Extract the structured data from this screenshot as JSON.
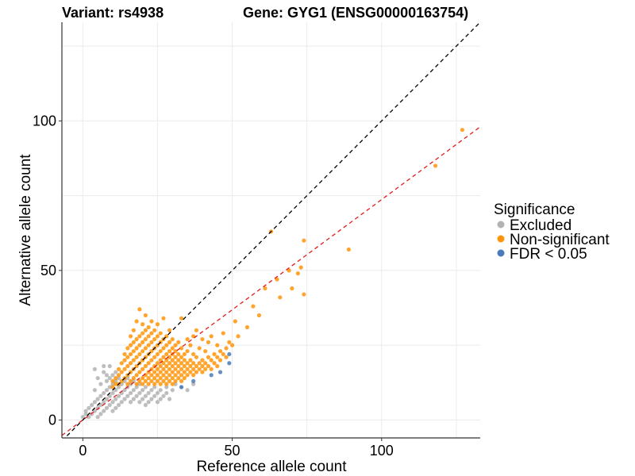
{
  "chart_data": {
    "type": "scatter",
    "title_left": "Variant: rs4938",
    "title_right": "Gene: GYG1 (ENSG00000163754)",
    "xlabel": "Reference allele count",
    "ylabel": "Alternative allele count",
    "xlim": [
      -7,
      133
    ],
    "ylim": [
      -6,
      133
    ],
    "xticks": [
      0,
      50,
      100
    ],
    "yticks": [
      0,
      50,
      100
    ],
    "grid": true,
    "reference_line": {
      "slope": 1,
      "intercept": 0,
      "color": "#000000",
      "style": "dashed"
    },
    "fit_line": {
      "slope": 0.737,
      "intercept": 0,
      "color": "#e41a1c",
      "style": "dashed"
    },
    "legend": {
      "title": "Significance",
      "position": "right",
      "entries": [
        {
          "label": "Excluded",
          "color": "#b3b3b3"
        },
        {
          "label": "Non-significant",
          "color": "#ff9408"
        },
        {
          "label": "FDR < 0.05",
          "color": "#4a7ab8"
        }
      ]
    },
    "series": [
      {
        "name": "Excluded",
        "color": "#b3b3b3",
        "points": [
          [
            0,
            1
          ],
          [
            1,
            2
          ],
          [
            1,
            3
          ],
          [
            2,
            1
          ],
          [
            2,
            4
          ],
          [
            3,
            2
          ],
          [
            3,
            5
          ],
          [
            4,
            3
          ],
          [
            4,
            6
          ],
          [
            4,
            10
          ],
          [
            4,
            17
          ],
          [
            5,
            1
          ],
          [
            5,
            4
          ],
          [
            5,
            7
          ],
          [
            5,
            14
          ],
          [
            6,
            2
          ],
          [
            6,
            5
          ],
          [
            6,
            8
          ],
          [
            6,
            12
          ],
          [
            7,
            3
          ],
          [
            7,
            6
          ],
          [
            7,
            9
          ],
          [
            7,
            16
          ],
          [
            7,
            18
          ],
          [
            8,
            4
          ],
          [
            8,
            7
          ],
          [
            8,
            10
          ],
          [
            8,
            13
          ],
          [
            8,
            15
          ],
          [
            9,
            5
          ],
          [
            9,
            8
          ],
          [
            9,
            11
          ],
          [
            9,
            14
          ],
          [
            9,
            18
          ],
          [
            10,
            3
          ],
          [
            10,
            6
          ],
          [
            10,
            9
          ],
          [
            10,
            12
          ],
          [
            10,
            15
          ],
          [
            11,
            4
          ],
          [
            11,
            7
          ],
          [
            11,
            10
          ],
          [
            11,
            13
          ],
          [
            11,
            16
          ],
          [
            12,
            5
          ],
          [
            12,
            8
          ],
          [
            12,
            11
          ],
          [
            12,
            14
          ],
          [
            13,
            6
          ],
          [
            13,
            9
          ],
          [
            13,
            12
          ],
          [
            14,
            7
          ],
          [
            14,
            10
          ],
          [
            14,
            13
          ],
          [
            15,
            8
          ],
          [
            15,
            11
          ],
          [
            15,
            14
          ],
          [
            16,
            6
          ],
          [
            16,
            9
          ],
          [
            16,
            12
          ],
          [
            17,
            7
          ],
          [
            17,
            10
          ],
          [
            17,
            13
          ],
          [
            18,
            8
          ],
          [
            18,
            11
          ],
          [
            19,
            6
          ],
          [
            19,
            9
          ],
          [
            19,
            12
          ],
          [
            20,
            7
          ],
          [
            20,
            10
          ],
          [
            21,
            5
          ],
          [
            21,
            8
          ],
          [
            21,
            11
          ],
          [
            22,
            6
          ],
          [
            22,
            9
          ],
          [
            23,
            7
          ],
          [
            23,
            10
          ],
          [
            24,
            8
          ],
          [
            24,
            11
          ],
          [
            25,
            6
          ],
          [
            25,
            9
          ],
          [
            26,
            7
          ],
          [
            26,
            10
          ],
          [
            27,
            8
          ],
          [
            28,
            9
          ],
          [
            28,
            11
          ],
          [
            29,
            7
          ],
          [
            30,
            10
          ],
          [
            31,
            12
          ],
          [
            33,
            11
          ],
          [
            35,
            10
          ],
          [
            37,
            12
          ]
        ]
      },
      {
        "name": "Non-significant",
        "color": "#ff9408",
        "points": [
          [
            10,
            11
          ],
          [
            10,
            13
          ],
          [
            11,
            12
          ],
          [
            11,
            14
          ],
          [
            12,
            12
          ],
          [
            12,
            15
          ],
          [
            12,
            17
          ],
          [
            13,
            13
          ],
          [
            13,
            16
          ],
          [
            13,
            19
          ],
          [
            14,
            14
          ],
          [
            14,
            17
          ],
          [
            14,
            20
          ],
          [
            14,
            22
          ],
          [
            15,
            12
          ],
          [
            15,
            15
          ],
          [
            15,
            18
          ],
          [
            15,
            21
          ],
          [
            15,
            24
          ],
          [
            16,
            13
          ],
          [
            16,
            16
          ],
          [
            16,
            19
          ],
          [
            16,
            22
          ],
          [
            16,
            25
          ],
          [
            16,
            28
          ],
          [
            17,
            14
          ],
          [
            17,
            17
          ],
          [
            17,
            20
          ],
          [
            17,
            23
          ],
          [
            17,
            26
          ],
          [
            17,
            30
          ],
          [
            18,
            12
          ],
          [
            18,
            15
          ],
          [
            18,
            18
          ],
          [
            18,
            21
          ],
          [
            18,
            24
          ],
          [
            18,
            27
          ],
          [
            18,
            33
          ],
          [
            19,
            13
          ],
          [
            19,
            16
          ],
          [
            19,
            19
          ],
          [
            19,
            22
          ],
          [
            19,
            25
          ],
          [
            19,
            28
          ],
          [
            19,
            37
          ],
          [
            20,
            12
          ],
          [
            20,
            14
          ],
          [
            20,
            17
          ],
          [
            20,
            20
          ],
          [
            20,
            23
          ],
          [
            20,
            26
          ],
          [
            20,
            29
          ],
          [
            20,
            32
          ],
          [
            21,
            13
          ],
          [
            21,
            15
          ],
          [
            21,
            18
          ],
          [
            21,
            21
          ],
          [
            21,
            24
          ],
          [
            21,
            27
          ],
          [
            21,
            30
          ],
          [
            21,
            35
          ],
          [
            22,
            12
          ],
          [
            22,
            14
          ],
          [
            22,
            16
          ],
          [
            22,
            19
          ],
          [
            22,
            22
          ],
          [
            22,
            25
          ],
          [
            22,
            28
          ],
          [
            22,
            31
          ],
          [
            23,
            13
          ],
          [
            23,
            15
          ],
          [
            23,
            17
          ],
          [
            23,
            20
          ],
          [
            23,
            23
          ],
          [
            23,
            26
          ],
          [
            23,
            29
          ],
          [
            23,
            33
          ],
          [
            24,
            12
          ],
          [
            24,
            14
          ],
          [
            24,
            16
          ],
          [
            24,
            18
          ],
          [
            24,
            21
          ],
          [
            24,
            24
          ],
          [
            24,
            27
          ],
          [
            24,
            30
          ],
          [
            25,
            13
          ],
          [
            25,
            15
          ],
          [
            25,
            17
          ],
          [
            25,
            19
          ],
          [
            25,
            22
          ],
          [
            25,
            25
          ],
          [
            25,
            28
          ],
          [
            25,
            32
          ],
          [
            26,
            12
          ],
          [
            26,
            14
          ],
          [
            26,
            16
          ],
          [
            26,
            18
          ],
          [
            26,
            20
          ],
          [
            26,
            23
          ],
          [
            26,
            26
          ],
          [
            26,
            29
          ],
          [
            27,
            13
          ],
          [
            27,
            15
          ],
          [
            27,
            17
          ],
          [
            27,
            19
          ],
          [
            27,
            21
          ],
          [
            27,
            24
          ],
          [
            27,
            27
          ],
          [
            27,
            34
          ],
          [
            28,
            12
          ],
          [
            28,
            14
          ],
          [
            28,
            16
          ],
          [
            28,
            18
          ],
          [
            28,
            20
          ],
          [
            28,
            22
          ],
          [
            28,
            25
          ],
          [
            28,
            28
          ],
          [
            29,
            13
          ],
          [
            29,
            15
          ],
          [
            29,
            17
          ],
          [
            29,
            19
          ],
          [
            29,
            21
          ],
          [
            29,
            23
          ],
          [
            29,
            26
          ],
          [
            29,
            30
          ],
          [
            30,
            12
          ],
          [
            30,
            14
          ],
          [
            30,
            16
          ],
          [
            30,
            18
          ],
          [
            30,
            20
          ],
          [
            30,
            22
          ],
          [
            30,
            24
          ],
          [
            30,
            27
          ],
          [
            31,
            13
          ],
          [
            31,
            15
          ],
          [
            31,
            17
          ],
          [
            31,
            19
          ],
          [
            31,
            21
          ],
          [
            31,
            23
          ],
          [
            31,
            25
          ],
          [
            32,
            14
          ],
          [
            32,
            16
          ],
          [
            32,
            18
          ],
          [
            32,
            20
          ],
          [
            32,
            22
          ],
          [
            32,
            26
          ],
          [
            33,
            13
          ],
          [
            33,
            15
          ],
          [
            33,
            17
          ],
          [
            33,
            19
          ],
          [
            33,
            21
          ],
          [
            33,
            24
          ],
          [
            33,
            34
          ],
          [
            34,
            14
          ],
          [
            34,
            16
          ],
          [
            34,
            18
          ],
          [
            34,
            20
          ],
          [
            34,
            22
          ],
          [
            35,
            15
          ],
          [
            35,
            17
          ],
          [
            35,
            19
          ],
          [
            35,
            23
          ],
          [
            35,
            27
          ],
          [
            36,
            16
          ],
          [
            36,
            18
          ],
          [
            36,
            20
          ],
          [
            36,
            25
          ],
          [
            37,
            15
          ],
          [
            37,
            17
          ],
          [
            37,
            19
          ],
          [
            37,
            22
          ],
          [
            37,
            28
          ],
          [
            38,
            16
          ],
          [
            38,
            18
          ],
          [
            38,
            21
          ],
          [
            38,
            30
          ],
          [
            39,
            17
          ],
          [
            39,
            19
          ],
          [
            39,
            24
          ],
          [
            40,
            16
          ],
          [
            40,
            18
          ],
          [
            40,
            20
          ],
          [
            40,
            27
          ],
          [
            41,
            17
          ],
          [
            41,
            19
          ],
          [
            41,
            23
          ],
          [
            42,
            18
          ],
          [
            42,
            21
          ],
          [
            42,
            26
          ],
          [
            43,
            17
          ],
          [
            43,
            20
          ],
          [
            43,
            28
          ],
          [
            44,
            19
          ],
          [
            44,
            22
          ],
          [
            45,
            18
          ],
          [
            45,
            21
          ],
          [
            45,
            25
          ],
          [
            46,
            20
          ],
          [
            46,
            23
          ],
          [
            47,
            22
          ],
          [
            47,
            29
          ],
          [
            48,
            21
          ],
          [
            48,
            24
          ],
          [
            49,
            26
          ],
          [
            50,
            25
          ],
          [
            51,
            33
          ],
          [
            52,
            28
          ],
          [
            55,
            31
          ],
          [
            57,
            38
          ],
          [
            59,
            35
          ],
          [
            61,
            44
          ],
          [
            63,
            63
          ],
          [
            65,
            47
          ],
          [
            66,
            41
          ],
          [
            69,
            50
          ],
          [
            70,
            44
          ],
          [
            72,
            49
          ],
          [
            73,
            51
          ],
          [
            74,
            42
          ],
          [
            74,
            60
          ],
          [
            89,
            57
          ],
          [
            118,
            85
          ],
          [
            127,
            97
          ]
        ]
      },
      {
        "name": "FDR < 0.05",
        "color": "#4a7ab8",
        "points": [
          [
            33,
            11
          ],
          [
            37,
            13
          ],
          [
            43,
            15
          ],
          [
            46,
            16
          ],
          [
            49,
            19
          ],
          [
            49,
            22
          ]
        ]
      }
    ]
  }
}
